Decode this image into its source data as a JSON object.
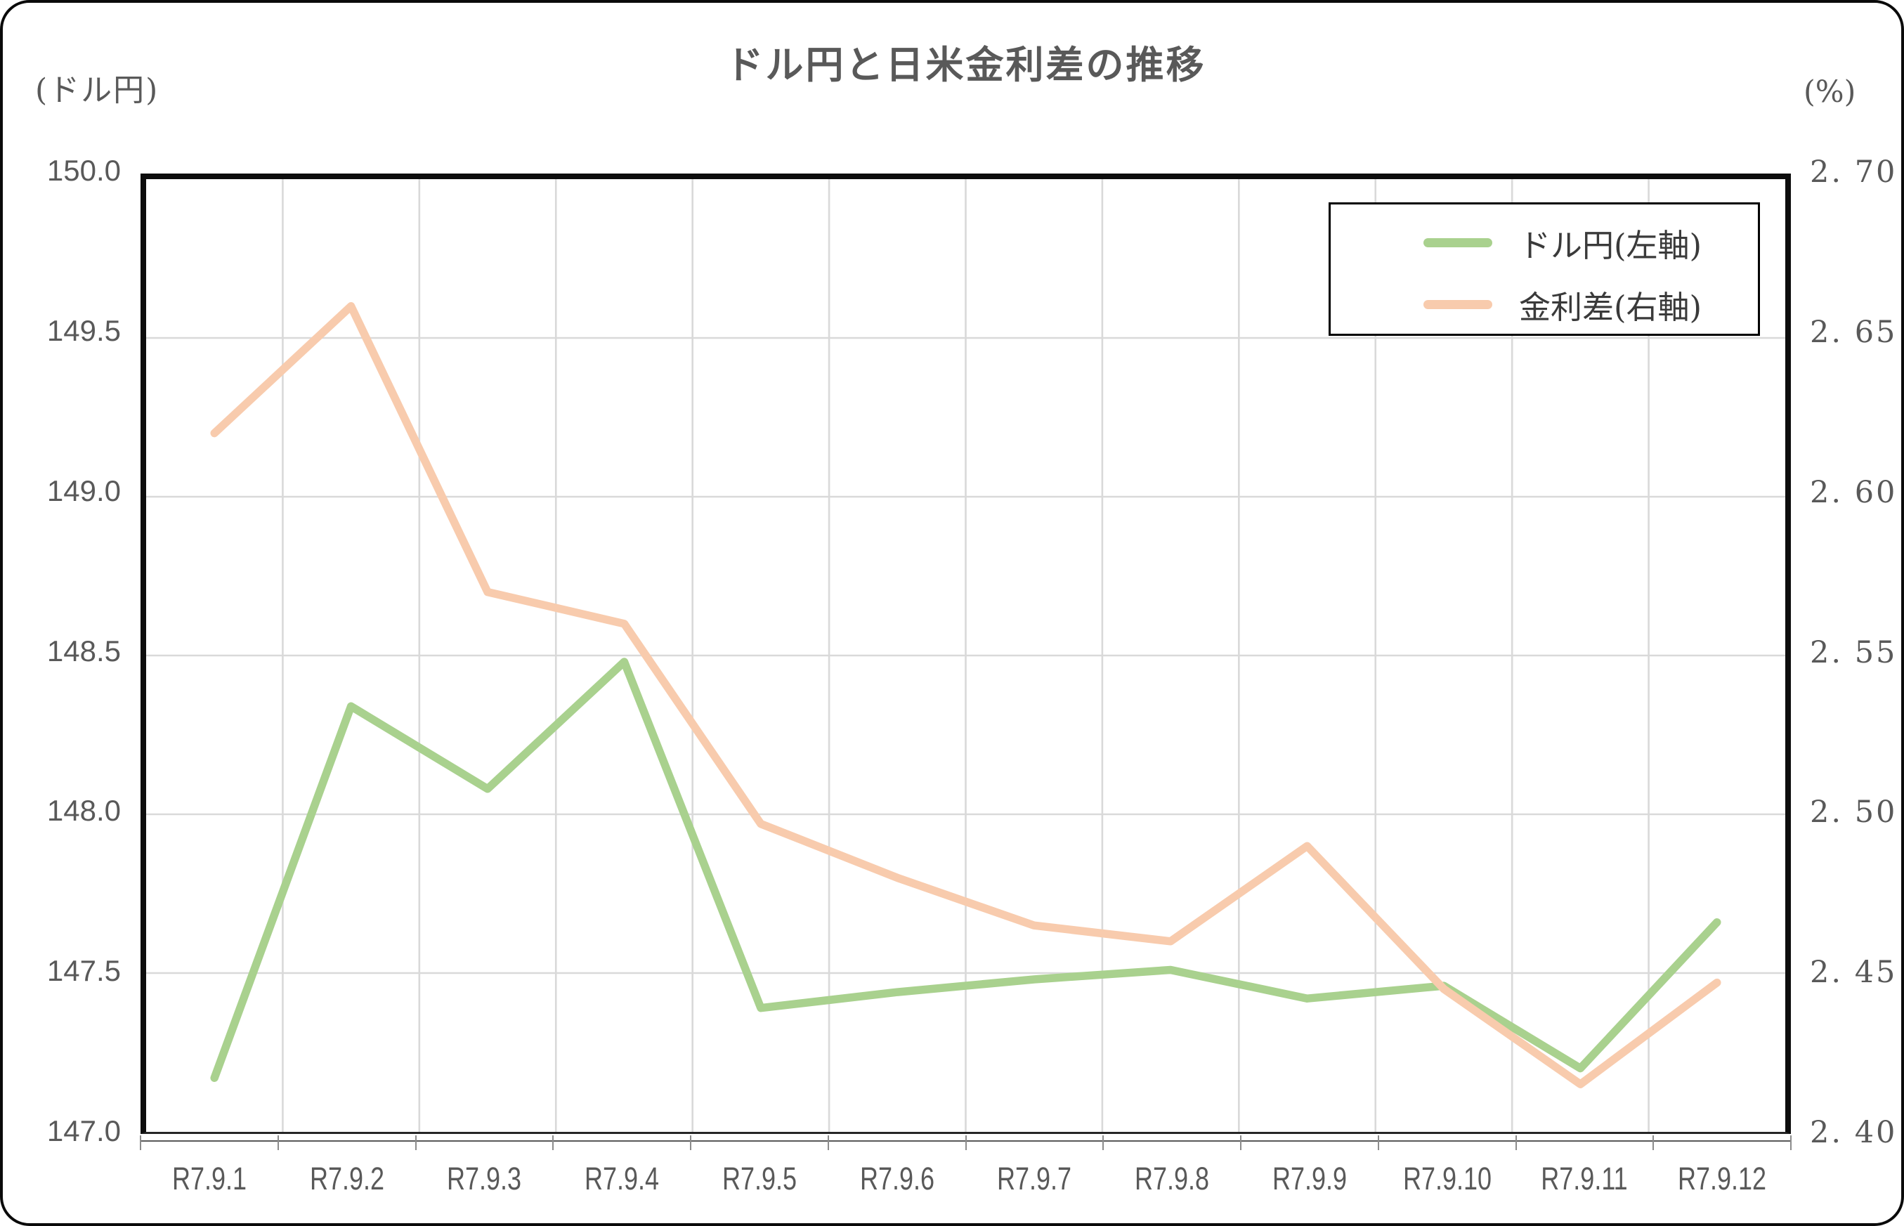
{
  "chart_data": {
    "type": "line",
    "title": "ドル円と日米金利差の推移",
    "left_axis": {
      "unit_label": "(ドル円)",
      "min": 147.0,
      "max": 150.0,
      "tick_labels": [
        "150.0",
        "149.5",
        "149.0",
        "148.5",
        "148.0",
        "147.5",
        "147.0"
      ]
    },
    "right_axis": {
      "unit_label": "(%)",
      "min": 2.4,
      "max": 2.7,
      "tick_labels": [
        "2. 70",
        "2. 65",
        "2. 60",
        "2. 55",
        "2. 50",
        "2. 45",
        "2. 40"
      ]
    },
    "categories": [
      "R7.9.1",
      "R7.9.2",
      "R7.9.3",
      "R7.9.4",
      "R7.9.5",
      "R7.9.6",
      "R7.9.7",
      "R7.9.8",
      "R7.9.9",
      "R7.9.10",
      "R7.9.11",
      "R7.9.12"
    ],
    "series": [
      {
        "name": "ドル円(左軸)",
        "key": "usd-jpy",
        "axis": "left",
        "color": "#a9d18e",
        "values": [
          147.17,
          148.34,
          148.08,
          148.48,
          147.39,
          147.44,
          147.48,
          147.51,
          147.42,
          147.46,
          147.2,
          147.66
        ]
      },
      {
        "name": "金利差(右軸)",
        "key": "rate-diff",
        "axis": "right",
        "color": "#f8cbad",
        "values": [
          2.62,
          2.66,
          2.57,
          2.56,
          2.497,
          2.48,
          2.465,
          2.46,
          2.49,
          2.445,
          2.415,
          2.447
        ]
      }
    ],
    "grid": true,
    "legend_position": "top-right",
    "styles": {
      "grid_color": "#d9d9d9",
      "axis_color": "#0d0d0d",
      "text_color": "#595959",
      "legend_text_color": "#3a3a3a"
    }
  }
}
